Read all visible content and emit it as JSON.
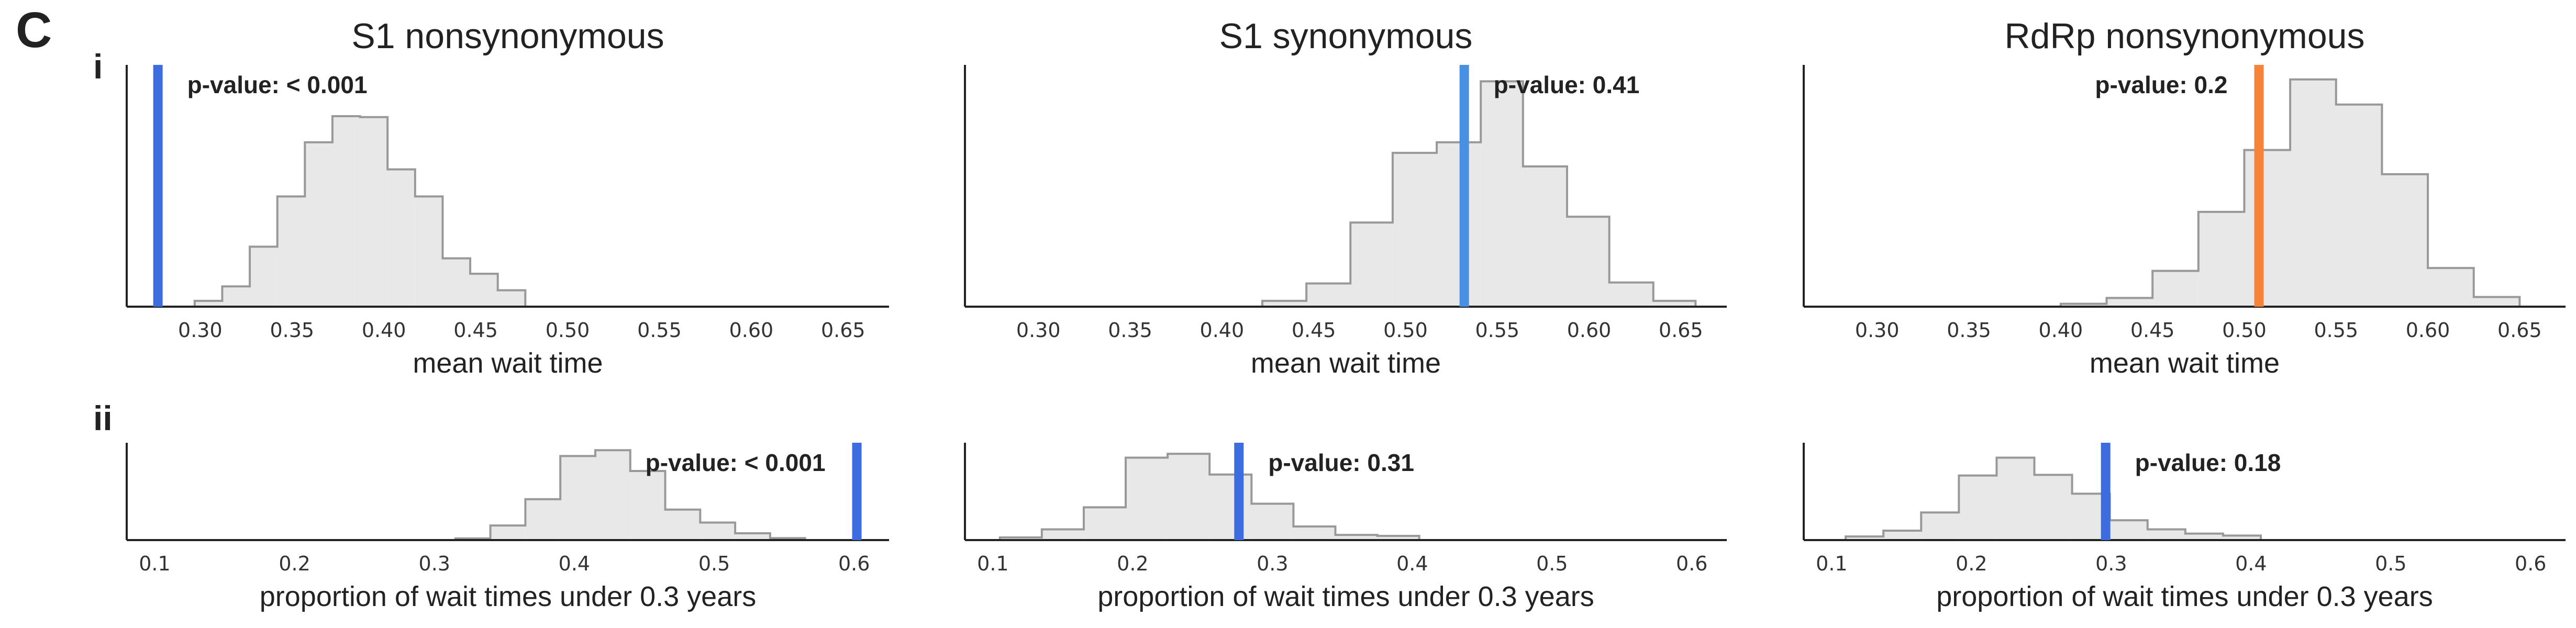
{
  "panel_letter": "C",
  "row_labels": [
    "i",
    "ii"
  ],
  "colors": {
    "hist_fill": "#e8e8e8",
    "hist_edge": "#999999",
    "blue": "#3d6be0",
    "light_blue": "#4a90e2",
    "orange": "#f5843a",
    "axis": "#222222"
  },
  "chart_data": [
    {
      "type": "histogram",
      "row": "i",
      "title": "S1 nonsynonymous",
      "xlabel": "mean wait time",
      "xlim": [
        0.26,
        0.675
      ],
      "ylim": [
        0,
        0.25
      ],
      "xticks": [
        0.3,
        0.35,
        0.4,
        0.45,
        0.5,
        0.55,
        0.6,
        0.65
      ],
      "xtick_labels": [
        "0.30",
        "0.35",
        "0.40",
        "0.45",
        "0.50",
        "0.55",
        "0.60",
        "0.65"
      ],
      "bin_edges": [
        0.297,
        0.312,
        0.327,
        0.342,
        0.357,
        0.372,
        0.387,
        0.402,
        0.417,
        0.432,
        0.447,
        0.462,
        0.477
      ],
      "bin_values": [
        0.006,
        0.021,
        0.062,
        0.114,
        0.17,
        0.197,
        0.196,
        0.142,
        0.114,
        0.05,
        0.034,
        0.017
      ],
      "observed": 0.277,
      "observed_color": "#3d6be0",
      "pvalue_text": "p-value: < 0.001",
      "pvalue_side": "right-of-line"
    },
    {
      "type": "histogram",
      "row": "i",
      "title": "S1 synonymous",
      "xlabel": "mean wait time",
      "xlim": [
        0.26,
        0.675
      ],
      "ylim": [
        0,
        0.25
      ],
      "xticks": [
        0.3,
        0.35,
        0.4,
        0.45,
        0.5,
        0.55,
        0.6,
        0.65
      ],
      "xtick_labels": [
        "0.30",
        "0.35",
        "0.40",
        "0.45",
        "0.50",
        "0.55",
        "0.60",
        "0.65"
      ],
      "bin_edges": [
        0.422,
        0.446,
        0.47,
        0.493,
        0.517,
        0.541,
        0.564,
        0.588,
        0.611,
        0.635,
        0.658
      ],
      "bin_values": [
        0.006,
        0.024,
        0.087,
        0.159,
        0.17,
        0.233,
        0.145,
        0.093,
        0.025,
        0.006
      ],
      "observed": 0.532,
      "observed_color": "#4a90e2",
      "pvalue_text": "p-value: 0.41",
      "pvalue_side": "right-of-line"
    },
    {
      "type": "histogram",
      "row": "i",
      "title": "RdRp nonsynonymous",
      "xlabel": "mean wait time",
      "xlim": [
        0.26,
        0.675
      ],
      "ylim": [
        0,
        0.25
      ],
      "xticks": [
        0.3,
        0.35,
        0.4,
        0.45,
        0.5,
        0.55,
        0.6,
        0.65
      ],
      "xtick_labels": [
        "0.30",
        "0.35",
        "0.40",
        "0.45",
        "0.50",
        "0.55",
        "0.60",
        "0.65"
      ],
      "bin_edges": [
        0.4,
        0.425,
        0.45,
        0.475,
        0.5,
        0.525,
        0.55,
        0.575,
        0.6,
        0.625,
        0.65
      ],
      "bin_values": [
        0.003,
        0.009,
        0.037,
        0.098,
        0.162,
        0.235,
        0.209,
        0.137,
        0.04,
        0.01
      ],
      "observed": 0.508,
      "observed_color": "#f5843a",
      "pvalue_text": "p-value: 0.2",
      "pvalue_side": "left-of-line"
    },
    {
      "type": "histogram",
      "row": "ii",
      "xlabel": "proportion of wait times under 0.3 years",
      "xlim": [
        0.08,
        0.625
      ],
      "ylim": [
        0,
        0.3
      ],
      "xticks": [
        0.1,
        0.2,
        0.3,
        0.4,
        0.5,
        0.6
      ],
      "xtick_labels": [
        "0.1",
        "0.2",
        "0.3",
        "0.4",
        "0.5",
        "0.6"
      ],
      "bin_edges": [
        0.315,
        0.34,
        0.365,
        0.39,
        0.415,
        0.44,
        0.465,
        0.49,
        0.515,
        0.54,
        0.565
      ],
      "bin_values": [
        0.005,
        0.045,
        0.126,
        0.259,
        0.277,
        0.213,
        0.094,
        0.054,
        0.021,
        0.006
      ],
      "observed": 0.602,
      "observed_color": "#3d6be0",
      "pvalue_text": "p-value: < 0.001",
      "pvalue_side": "left-of-line"
    },
    {
      "type": "histogram",
      "row": "ii",
      "xlabel": "proportion of wait times under 0.3 years",
      "xlim": [
        0.08,
        0.625
      ],
      "ylim": [
        0,
        0.3
      ],
      "xticks": [
        0.1,
        0.2,
        0.3,
        0.4,
        0.5,
        0.6
      ],
      "xtick_labels": [
        "0.1",
        "0.2",
        "0.3",
        "0.4",
        "0.5",
        "0.6"
      ],
      "bin_edges": [
        0.105,
        0.135,
        0.165,
        0.195,
        0.225,
        0.255,
        0.285,
        0.315,
        0.345,
        0.375,
        0.405
      ],
      "bin_values": [
        0.008,
        0.033,
        0.101,
        0.254,
        0.266,
        0.202,
        0.112,
        0.042,
        0.016,
        0.013
      ],
      "observed": 0.276,
      "observed_color": "#3d6be0",
      "pvalue_text": "p-value: 0.31",
      "pvalue_side": "right-of-line"
    },
    {
      "type": "histogram",
      "row": "ii",
      "xlabel": "proportion of wait times under 0.3 years",
      "xlim": [
        0.08,
        0.625
      ],
      "ylim": [
        0,
        0.3
      ],
      "xticks": [
        0.1,
        0.2,
        0.3,
        0.4,
        0.5,
        0.6
      ],
      "xtick_labels": [
        "0.1",
        "0.2",
        "0.3",
        "0.4",
        "0.5",
        "0.6"
      ],
      "bin_edges": [
        0.11,
        0.137,
        0.164,
        0.191,
        0.218,
        0.245,
        0.272,
        0.299,
        0.326,
        0.353,
        0.38,
        0.407
      ],
      "bin_values": [
        0.011,
        0.029,
        0.085,
        0.199,
        0.254,
        0.201,
        0.143,
        0.061,
        0.033,
        0.02,
        0.014
      ],
      "observed": 0.296,
      "observed_color": "#3d6be0",
      "pvalue_text": "p-value: 0.18",
      "pvalue_side": "right-of-line"
    }
  ]
}
